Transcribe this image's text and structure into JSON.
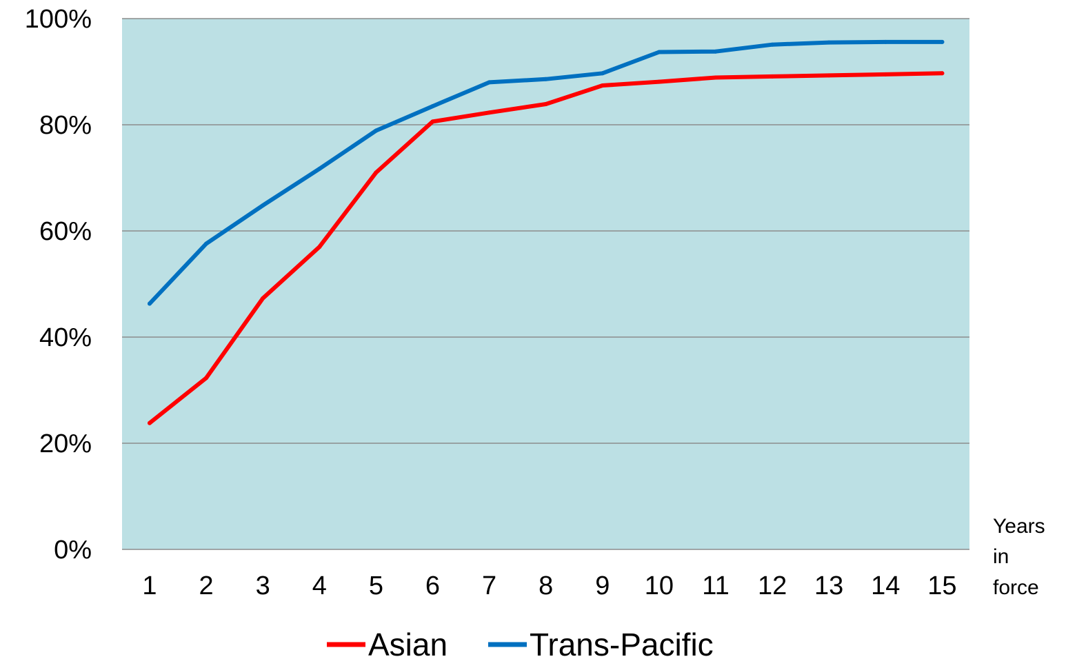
{
  "chart_data": {
    "type": "line",
    "title": "",
    "x": [
      1,
      2,
      3,
      4,
      5,
      6,
      7,
      8,
      9,
      10,
      11,
      12,
      13,
      14,
      15
    ],
    "x_tick_labels": [
      "1",
      "2",
      "3",
      "4",
      "5",
      "6",
      "7",
      "8",
      "9",
      "10",
      "11",
      "12",
      "13",
      "14",
      "15"
    ],
    "xlabel_lines": [
      "Years",
      "in",
      "force"
    ],
    "ylabel": "",
    "ylim": [
      0,
      100
    ],
    "y_tick_values": [
      0,
      20,
      40,
      60,
      80,
      100
    ],
    "y_tick_labels": [
      "0%",
      "20%",
      "40%",
      "60%",
      "80%",
      "100%"
    ],
    "grid": true,
    "plot_background": "#bce0e4",
    "gridline_color": "#8c8c8c",
    "legend_position": "bottom-center",
    "series": [
      {
        "name": "Asian",
        "color": "#ff0000",
        "values": [
          23.8,
          32.3,
          47.3,
          57.0,
          71.0,
          80.6,
          82.3,
          83.9,
          87.4,
          88.1,
          88.9,
          89.1,
          89.3,
          89.5,
          89.7
        ]
      },
      {
        "name": "Trans-Pacific",
        "color": "#0070c0",
        "values": [
          46.3,
          57.6,
          64.8,
          71.7,
          78.9,
          83.5,
          88.0,
          88.6,
          89.7,
          93.7,
          93.8,
          95.1,
          95.5,
          95.6,
          95.6
        ]
      }
    ]
  }
}
